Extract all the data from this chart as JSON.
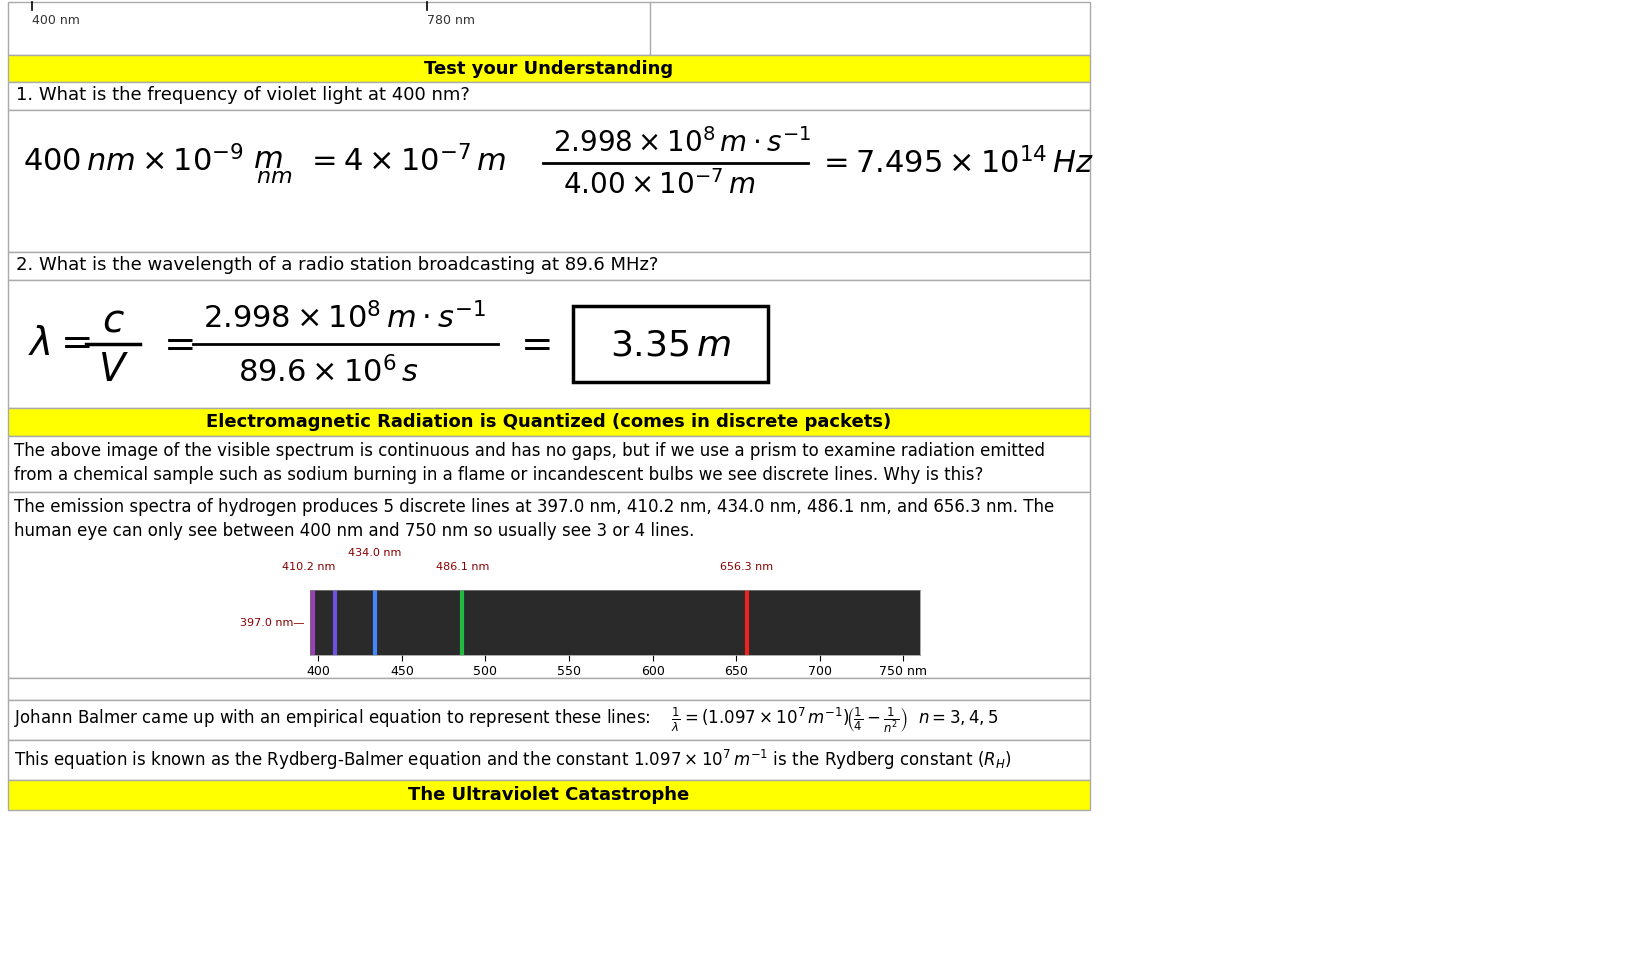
{
  "bg_color": "#ffffff",
  "yellow": "#ffff00",
  "top_label_400": "400 nm",
  "top_label_780": "780 nm",
  "question1": "1. What is the frequency of violet light at 400 nm?",
  "question2": "2. What is the wavelength of a radio station broadcasting at 89.6 MHz?",
  "em_header": "Electromagnetic Radiation is Quantized (comes in discrete packets)",
  "tyu_header": "Test your Understanding",
  "uv_header": "The Ultraviolet Catastrophe",
  "em_text1": "The above image of the visible spectrum is continuous and has no gaps, but if we use a prism to examine radiation emitted",
  "em_text1b": "from a chemical sample such as sodium burning in a flame or incandescent bulbs we see discrete lines. Why is this?",
  "em_text2": "The emission spectra of hydrogen produces 5 discrete lines at 397.0 nm, 410.2 nm, 434.0 nm, 486.1 nm, and 656.3 nm. The",
  "em_text2b": "human eye can only see between 400 nm and 750 nm so usually see 3 or 4 lines.",
  "spectrum_lines": [
    {
      "nm": 397.0,
      "color": "#9940B8"
    },
    {
      "nm": 410.2,
      "color": "#7050E0"
    },
    {
      "nm": 434.0,
      "color": "#4488FF"
    },
    {
      "nm": 486.1,
      "color": "#22BB44"
    },
    {
      "nm": 656.3,
      "color": "#EE2222"
    }
  ],
  "spectrum_ticks": [
    400,
    450,
    500,
    550,
    600,
    650,
    700,
    750
  ],
  "spectrum_tick_labels": [
    "400",
    "450",
    "500",
    "550",
    "600",
    "650",
    "700",
    "750 nm"
  ],
  "balmer_line": "Johann Balmer came up with an empirical equation to represent these lines:",
  "rydberg_line1": "This equation is known as the Rydberg-Balmer equation and the constant 1.097 × 10",
  "border_color": "#aaaaaa"
}
